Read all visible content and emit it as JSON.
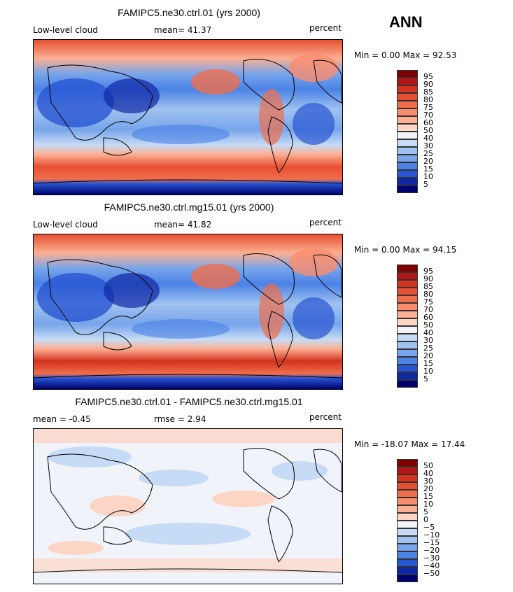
{
  "season": "ANN",
  "panels": [
    {
      "title": "FAMIPC5.ne30.ctrl.01 (yrs 2000)",
      "left_label": "Low-level cloud",
      "stat_text": "mean=  41.37",
      "units": "percent",
      "minmax": "Min =   0.00 Max =  92.53",
      "colorbar_labels": [
        "95",
        "90",
        "85",
        "80",
        "75",
        "70",
        "60",
        "50",
        "40",
        "30",
        "25",
        "20",
        "15",
        "10",
        "5"
      ],
      "colors": [
        "#800000",
        "#b41414",
        "#d2321e",
        "#e65032",
        "#f06e4b",
        "#fa8c6e",
        "#fcaf93",
        "#fdd5c4",
        "#f0f4fa",
        "#c6dbf5",
        "#a0c2f0",
        "#78a5eb",
        "#4b82e6",
        "#2855d2",
        "#0f28a5",
        "#00006e"
      ]
    },
    {
      "title": "FAMIPC5.ne30.ctrl.mg15.01 (yrs 2000)",
      "left_label": "Low-level cloud",
      "stat_text": "mean=  41.82",
      "units": "percent",
      "minmax": "Min =   0.00 Max =  94.15",
      "colorbar_labels": [
        "95",
        "90",
        "85",
        "80",
        "75",
        "70",
        "60",
        "50",
        "40",
        "30",
        "25",
        "20",
        "15",
        "10",
        "5"
      ],
      "colors": [
        "#800000",
        "#b41414",
        "#d2321e",
        "#e65032",
        "#f06e4b",
        "#fa8c6e",
        "#fcaf93",
        "#fdd5c4",
        "#f0f4fa",
        "#c6dbf5",
        "#a0c2f0",
        "#78a5eb",
        "#4b82e6",
        "#2855d2",
        "#0f28a5",
        "#00006e"
      ]
    },
    {
      "title": "FAMIPC5.ne30.ctrl.01 - FAMIPC5.ne30.ctrl.mg15.01",
      "left_label": "mean =  -0.45",
      "stat_text": "rmse =   2.94",
      "units": "percent",
      "minmax": "Min = -18.07 Max =  17.44",
      "colorbar_labels": [
        "50",
        "40",
        "30",
        "20",
        "15",
        "10",
        "5",
        "0",
        "−5",
        "−10",
        "−15",
        "−20",
        "−30",
        "−40",
        "−50"
      ],
      "colors": [
        "#800000",
        "#b41414",
        "#d2321e",
        "#e65032",
        "#f06e4b",
        "#fa8c6e",
        "#fcaf93",
        "#fdd5c4",
        "#f0f4fa",
        "#c6dbf5",
        "#a0c2f0",
        "#78a5eb",
        "#4b82e6",
        "#2855d2",
        "#0f28a5",
        "#00006e"
      ]
    }
  ],
  "chart_data": [
    {
      "type": "heatmap",
      "title": "FAMIPC5.ne30.ctrl.01 (yrs 2000)",
      "variable": "Low-level cloud",
      "units": "percent",
      "mean": 41.37,
      "min": 0.0,
      "max": 92.53,
      "levels": [
        5,
        10,
        15,
        20,
        25,
        30,
        40,
        50,
        60,
        70,
        75,
        80,
        85,
        90,
        95
      ]
    },
    {
      "type": "heatmap",
      "title": "FAMIPC5.ne30.ctrl.mg15.01 (yrs 2000)",
      "variable": "Low-level cloud",
      "units": "percent",
      "mean": 41.82,
      "min": 0.0,
      "max": 94.15,
      "levels": [
        5,
        10,
        15,
        20,
        25,
        30,
        40,
        50,
        60,
        70,
        75,
        80,
        85,
        90,
        95
      ]
    },
    {
      "type": "heatmap",
      "title": "FAMIPC5.ne30.ctrl.01 - FAMIPC5.ne30.ctrl.mg15.01",
      "units": "percent",
      "mean": -0.45,
      "rmse": 2.94,
      "min": -18.07,
      "max": 17.44,
      "levels": [
        -50,
        -40,
        -30,
        -20,
        -15,
        -10,
        -5,
        0,
        5,
        10,
        15,
        20,
        30,
        40,
        50
      ]
    }
  ]
}
